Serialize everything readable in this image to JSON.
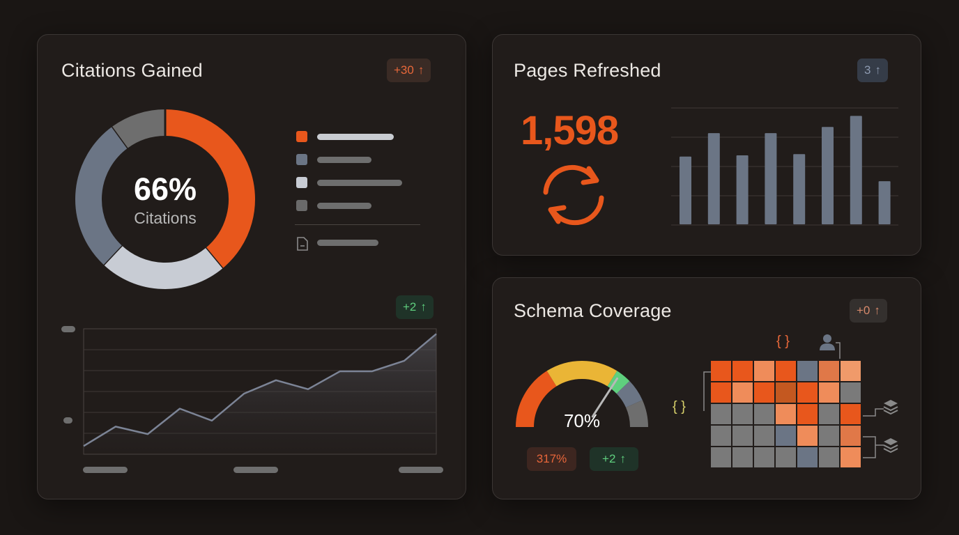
{
  "citations": {
    "title": "Citations Gained",
    "badge": "+30",
    "donut_value": "66%",
    "donut_label": "Citations",
    "trend_badge": "+2",
    "legend": [
      {
        "color": "#e8571c",
        "icon": "square-icon"
      },
      {
        "color": "#6b7585",
        "icon": "square-icon"
      },
      {
        "color": "#c8ccd4",
        "icon": "square-icon"
      },
      {
        "color": "#6e6e6e",
        "icon": "square-icon"
      },
      {
        "color": "#8a8a8a",
        "icon": "document-icon"
      }
    ],
    "donut_segments": [
      {
        "color": "#e8571c",
        "fraction": 0.39
      },
      {
        "color": "#c8ccd4",
        "fraction": 0.23
      },
      {
        "color": "#6b7585",
        "fraction": 0.28
      },
      {
        "color": "#6e6e6e",
        "fraction": 0.1
      }
    ],
    "line_values": [
      5,
      18,
      13,
      30,
      22,
      40,
      49,
      43,
      55,
      55,
      62,
      80
    ]
  },
  "pages": {
    "title": "Pages Refreshed",
    "badge": "3",
    "value": "1,598",
    "bar_values": [
      55,
      74,
      56,
      74,
      57,
      79,
      88,
      35
    ]
  },
  "schema": {
    "title": "Schema Coverage",
    "badge": "+0",
    "gauge_value": "70%",
    "gauge_fraction": 0.7,
    "stat_badge": "317%",
    "stat_trend": "+2",
    "code_glyph": "{ }",
    "heatmap": [
      [
        "#e8571c",
        "#e8571c",
        "#ef8c5a",
        "#e8571c",
        "#6b7585",
        "#e07848",
        "#f09a6a"
      ],
      [
        "#e8571c",
        "#ef8c5a",
        "#e8571c",
        "#c45820",
        "#e8571c",
        "#ef8c5a",
        "#7a7a7a"
      ],
      [
        "#7a7a7a",
        "#7a7a7a",
        "#7a7a7a",
        "#ef8c5a",
        "#e8571c",
        "#7a7a7a",
        "#e8571c"
      ],
      [
        "#7a7a7a",
        "#7a7a7a",
        "#7a7a7a",
        "#6b7585",
        "#ef8c5a",
        "#7a7a7a",
        "#e07848"
      ],
      [
        "#7a7a7a",
        "#7a7a7a",
        "#7a7a7a",
        "#7a7a7a",
        "#6b7585",
        "#7a7a7a",
        "#ef8c5a"
      ]
    ]
  }
}
